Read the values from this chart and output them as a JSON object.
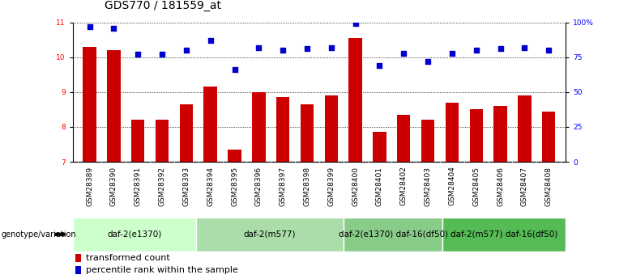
{
  "title": "GDS770 / 181559_at",
  "samples": [
    "GSM28389",
    "GSM28390",
    "GSM28391",
    "GSM28392",
    "GSM28393",
    "GSM28394",
    "GSM28395",
    "GSM28396",
    "GSM28397",
    "GSM28398",
    "GSM28399",
    "GSM28400",
    "GSM28401",
    "GSM28402",
    "GSM28403",
    "GSM28404",
    "GSM28405",
    "GSM28406",
    "GSM28407",
    "GSM28408"
  ],
  "bar_values": [
    10.3,
    10.2,
    8.2,
    8.2,
    8.65,
    9.15,
    7.35,
    9.0,
    8.85,
    8.65,
    8.9,
    10.55,
    7.85,
    8.35,
    8.2,
    8.7,
    8.5,
    8.6,
    8.9,
    8.45
  ],
  "percentile_values": [
    97,
    96,
    77,
    77,
    80,
    87,
    66,
    82,
    80,
    81,
    82,
    99,
    69,
    78,
    72,
    78,
    80,
    81,
    82,
    80
  ],
  "ylim_left": [
    7,
    11
  ],
  "ylim_right": [
    0,
    100
  ],
  "yticks_left": [
    7,
    8,
    9,
    10,
    11
  ],
  "yticks_right": [
    0,
    25,
    50,
    75,
    100
  ],
  "ytick_labels_right": [
    "0",
    "25",
    "50",
    "75",
    "100%"
  ],
  "bar_color": "#cc0000",
  "dot_color": "#0000cc",
  "groups": [
    {
      "label": "daf-2(e1370)",
      "start": 0,
      "end": 5,
      "color": "#ccffcc"
    },
    {
      "label": "daf-2(m577)",
      "start": 5,
      "end": 11,
      "color": "#aaddaa"
    },
    {
      "label": "daf-2(e1370) daf-16(df50)",
      "start": 11,
      "end": 15,
      "color": "#88cc88"
    },
    {
      "label": "daf-2(m577) daf-16(df50)",
      "start": 15,
      "end": 20,
      "color": "#55bb55"
    }
  ],
  "genotype_label": "genotype/variation",
  "legend_bar_label": "transformed count",
  "legend_dot_label": "percentile rank within the sample",
  "title_fontsize": 10,
  "tick_fontsize": 6.5,
  "bar_width": 0.55,
  "xlabel_bg_color": "#c0c0c0"
}
